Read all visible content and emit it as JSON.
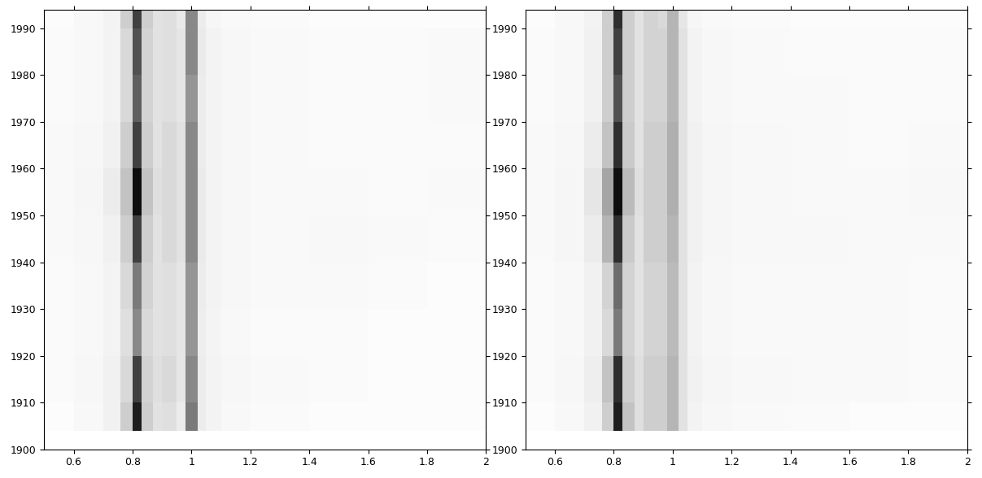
{
  "chart_data": [
    {
      "type": "heatmap",
      "color": "Greys",
      "x": [
        0.5,
        0.6,
        0.7,
        0.76,
        0.8,
        0.83,
        0.87,
        0.9,
        0.95,
        0.98,
        1.02,
        1.05,
        1.1,
        1.2,
        1.4,
        1.6,
        1.8,
        2.0
      ],
      "y": [
        1904,
        1910,
        1920,
        1930,
        1940,
        1950,
        1960,
        1970,
        1980,
        1990,
        1994
      ],
      "zlim": [
        0,
        1
      ],
      "cells": [
        [
          0.03,
          0.06,
          0.12,
          0.3,
          0.9,
          0.3,
          0.2,
          0.22,
          0.15,
          0.6,
          0.15,
          0.1,
          0.06,
          0.04,
          0.03,
          0.03,
          0.03
        ],
        [
          0.04,
          0.07,
          0.12,
          0.25,
          0.8,
          0.28,
          0.22,
          0.25,
          0.18,
          0.55,
          0.15,
          0.1,
          0.07,
          0.05,
          0.04,
          0.03,
          0.03
        ],
        [
          0.04,
          0.06,
          0.1,
          0.22,
          0.55,
          0.25,
          0.2,
          0.22,
          0.18,
          0.5,
          0.14,
          0.09,
          0.06,
          0.04,
          0.04,
          0.03,
          0.03
        ],
        [
          0.04,
          0.06,
          0.1,
          0.25,
          0.6,
          0.28,
          0.2,
          0.22,
          0.18,
          0.5,
          0.15,
          0.1,
          0.07,
          0.05,
          0.05,
          0.04,
          0.03
        ],
        [
          0.05,
          0.07,
          0.12,
          0.3,
          0.8,
          0.3,
          0.2,
          0.25,
          0.2,
          0.55,
          0.16,
          0.1,
          0.07,
          0.05,
          0.06,
          0.05,
          0.04
        ],
        [
          0.05,
          0.08,
          0.15,
          0.35,
          0.95,
          0.35,
          0.22,
          0.25,
          0.2,
          0.55,
          0.16,
          0.1,
          0.07,
          0.05,
          0.05,
          0.04,
          0.05
        ],
        [
          0.05,
          0.07,
          0.12,
          0.3,
          0.8,
          0.3,
          0.2,
          0.25,
          0.2,
          0.55,
          0.15,
          0.1,
          0.07,
          0.05,
          0.04,
          0.04,
          0.04
        ],
        [
          0.04,
          0.06,
          0.1,
          0.25,
          0.7,
          0.28,
          0.2,
          0.22,
          0.18,
          0.5,
          0.15,
          0.1,
          0.07,
          0.05,
          0.04,
          0.04,
          0.05
        ],
        [
          0.04,
          0.06,
          0.1,
          0.25,
          0.75,
          0.28,
          0.2,
          0.22,
          0.18,
          0.55,
          0.16,
          0.1,
          0.07,
          0.05,
          0.04,
          0.04,
          0.05
        ],
        [
          0.03,
          0.06,
          0.1,
          0.3,
          0.8,
          0.3,
          0.2,
          0.22,
          0.16,
          0.55,
          0.15,
          0.08,
          0.05,
          0.04,
          0.03,
          0.03,
          0.03
        ]
      ],
      "xlim": [
        0.5,
        2
      ],
      "ylim": [
        1900,
        1994
      ],
      "xticks": [
        0.6,
        0.8,
        1,
        1.2,
        1.4,
        1.6,
        1.8,
        2
      ],
      "yticks": [
        1900,
        1910,
        1920,
        1930,
        1940,
        1950,
        1960,
        1970,
        1980,
        1990
      ]
    },
    {
      "type": "heatmap",
      "color": "Greys",
      "x": [
        0.5,
        0.6,
        0.7,
        0.76,
        0.8,
        0.83,
        0.87,
        0.9,
        0.95,
        0.98,
        1.02,
        1.05,
        1.1,
        1.2,
        1.4,
        1.6,
        1.8,
        2.0
      ],
      "y": [
        1904,
        1910,
        1920,
        1930,
        1940,
        1950,
        1960,
        1970,
        1980,
        1990,
        1994
      ],
      "zlim": [
        0,
        1
      ],
      "cells": [
        [
          0.03,
          0.06,
          0.12,
          0.3,
          0.9,
          0.35,
          0.22,
          0.3,
          0.3,
          0.4,
          0.2,
          0.1,
          0.07,
          0.05,
          0.04,
          0.03,
          0.03
        ],
        [
          0.04,
          0.07,
          0.14,
          0.35,
          0.85,
          0.3,
          0.22,
          0.3,
          0.3,
          0.4,
          0.2,
          0.12,
          0.08,
          0.06,
          0.05,
          0.05,
          0.04
        ],
        [
          0.04,
          0.06,
          0.12,
          0.25,
          0.6,
          0.28,
          0.2,
          0.28,
          0.28,
          0.38,
          0.2,
          0.1,
          0.07,
          0.05,
          0.05,
          0.05,
          0.04
        ],
        [
          0.04,
          0.06,
          0.12,
          0.28,
          0.65,
          0.28,
          0.2,
          0.28,
          0.28,
          0.38,
          0.2,
          0.1,
          0.07,
          0.05,
          0.05,
          0.05,
          0.04
        ],
        [
          0.05,
          0.08,
          0.15,
          0.4,
          0.85,
          0.32,
          0.2,
          0.3,
          0.3,
          0.4,
          0.2,
          0.12,
          0.08,
          0.06,
          0.06,
          0.05,
          0.05
        ],
        [
          0.05,
          0.08,
          0.18,
          0.45,
          0.95,
          0.38,
          0.22,
          0.3,
          0.3,
          0.42,
          0.2,
          0.12,
          0.08,
          0.06,
          0.05,
          0.05,
          0.06
        ],
        [
          0.05,
          0.07,
          0.15,
          0.35,
          0.85,
          0.32,
          0.2,
          0.3,
          0.3,
          0.42,
          0.2,
          0.12,
          0.08,
          0.06,
          0.05,
          0.04,
          0.05
        ],
        [
          0.04,
          0.06,
          0.12,
          0.3,
          0.75,
          0.3,
          0.2,
          0.28,
          0.28,
          0.4,
          0.2,
          0.1,
          0.07,
          0.05,
          0.05,
          0.04,
          0.04
        ],
        [
          0.04,
          0.06,
          0.12,
          0.3,
          0.8,
          0.3,
          0.2,
          0.28,
          0.28,
          0.4,
          0.2,
          0.1,
          0.07,
          0.05,
          0.04,
          0.04,
          0.04
        ],
        [
          0.03,
          0.06,
          0.1,
          0.3,
          0.85,
          0.3,
          0.2,
          0.28,
          0.25,
          0.4,
          0.18,
          0.08,
          0.05,
          0.04,
          0.03,
          0.03,
          0.03
        ]
      ],
      "xlim": [
        0.5,
        2
      ],
      "ylim": [
        1900,
        1994
      ],
      "xticks": [
        0.6,
        0.8,
        1,
        1.2,
        1.4,
        1.6,
        1.8,
        2
      ],
      "yticks": [
        1900,
        1910,
        1920,
        1930,
        1940,
        1950,
        1960,
        1970,
        1980,
        1990
      ]
    }
  ]
}
